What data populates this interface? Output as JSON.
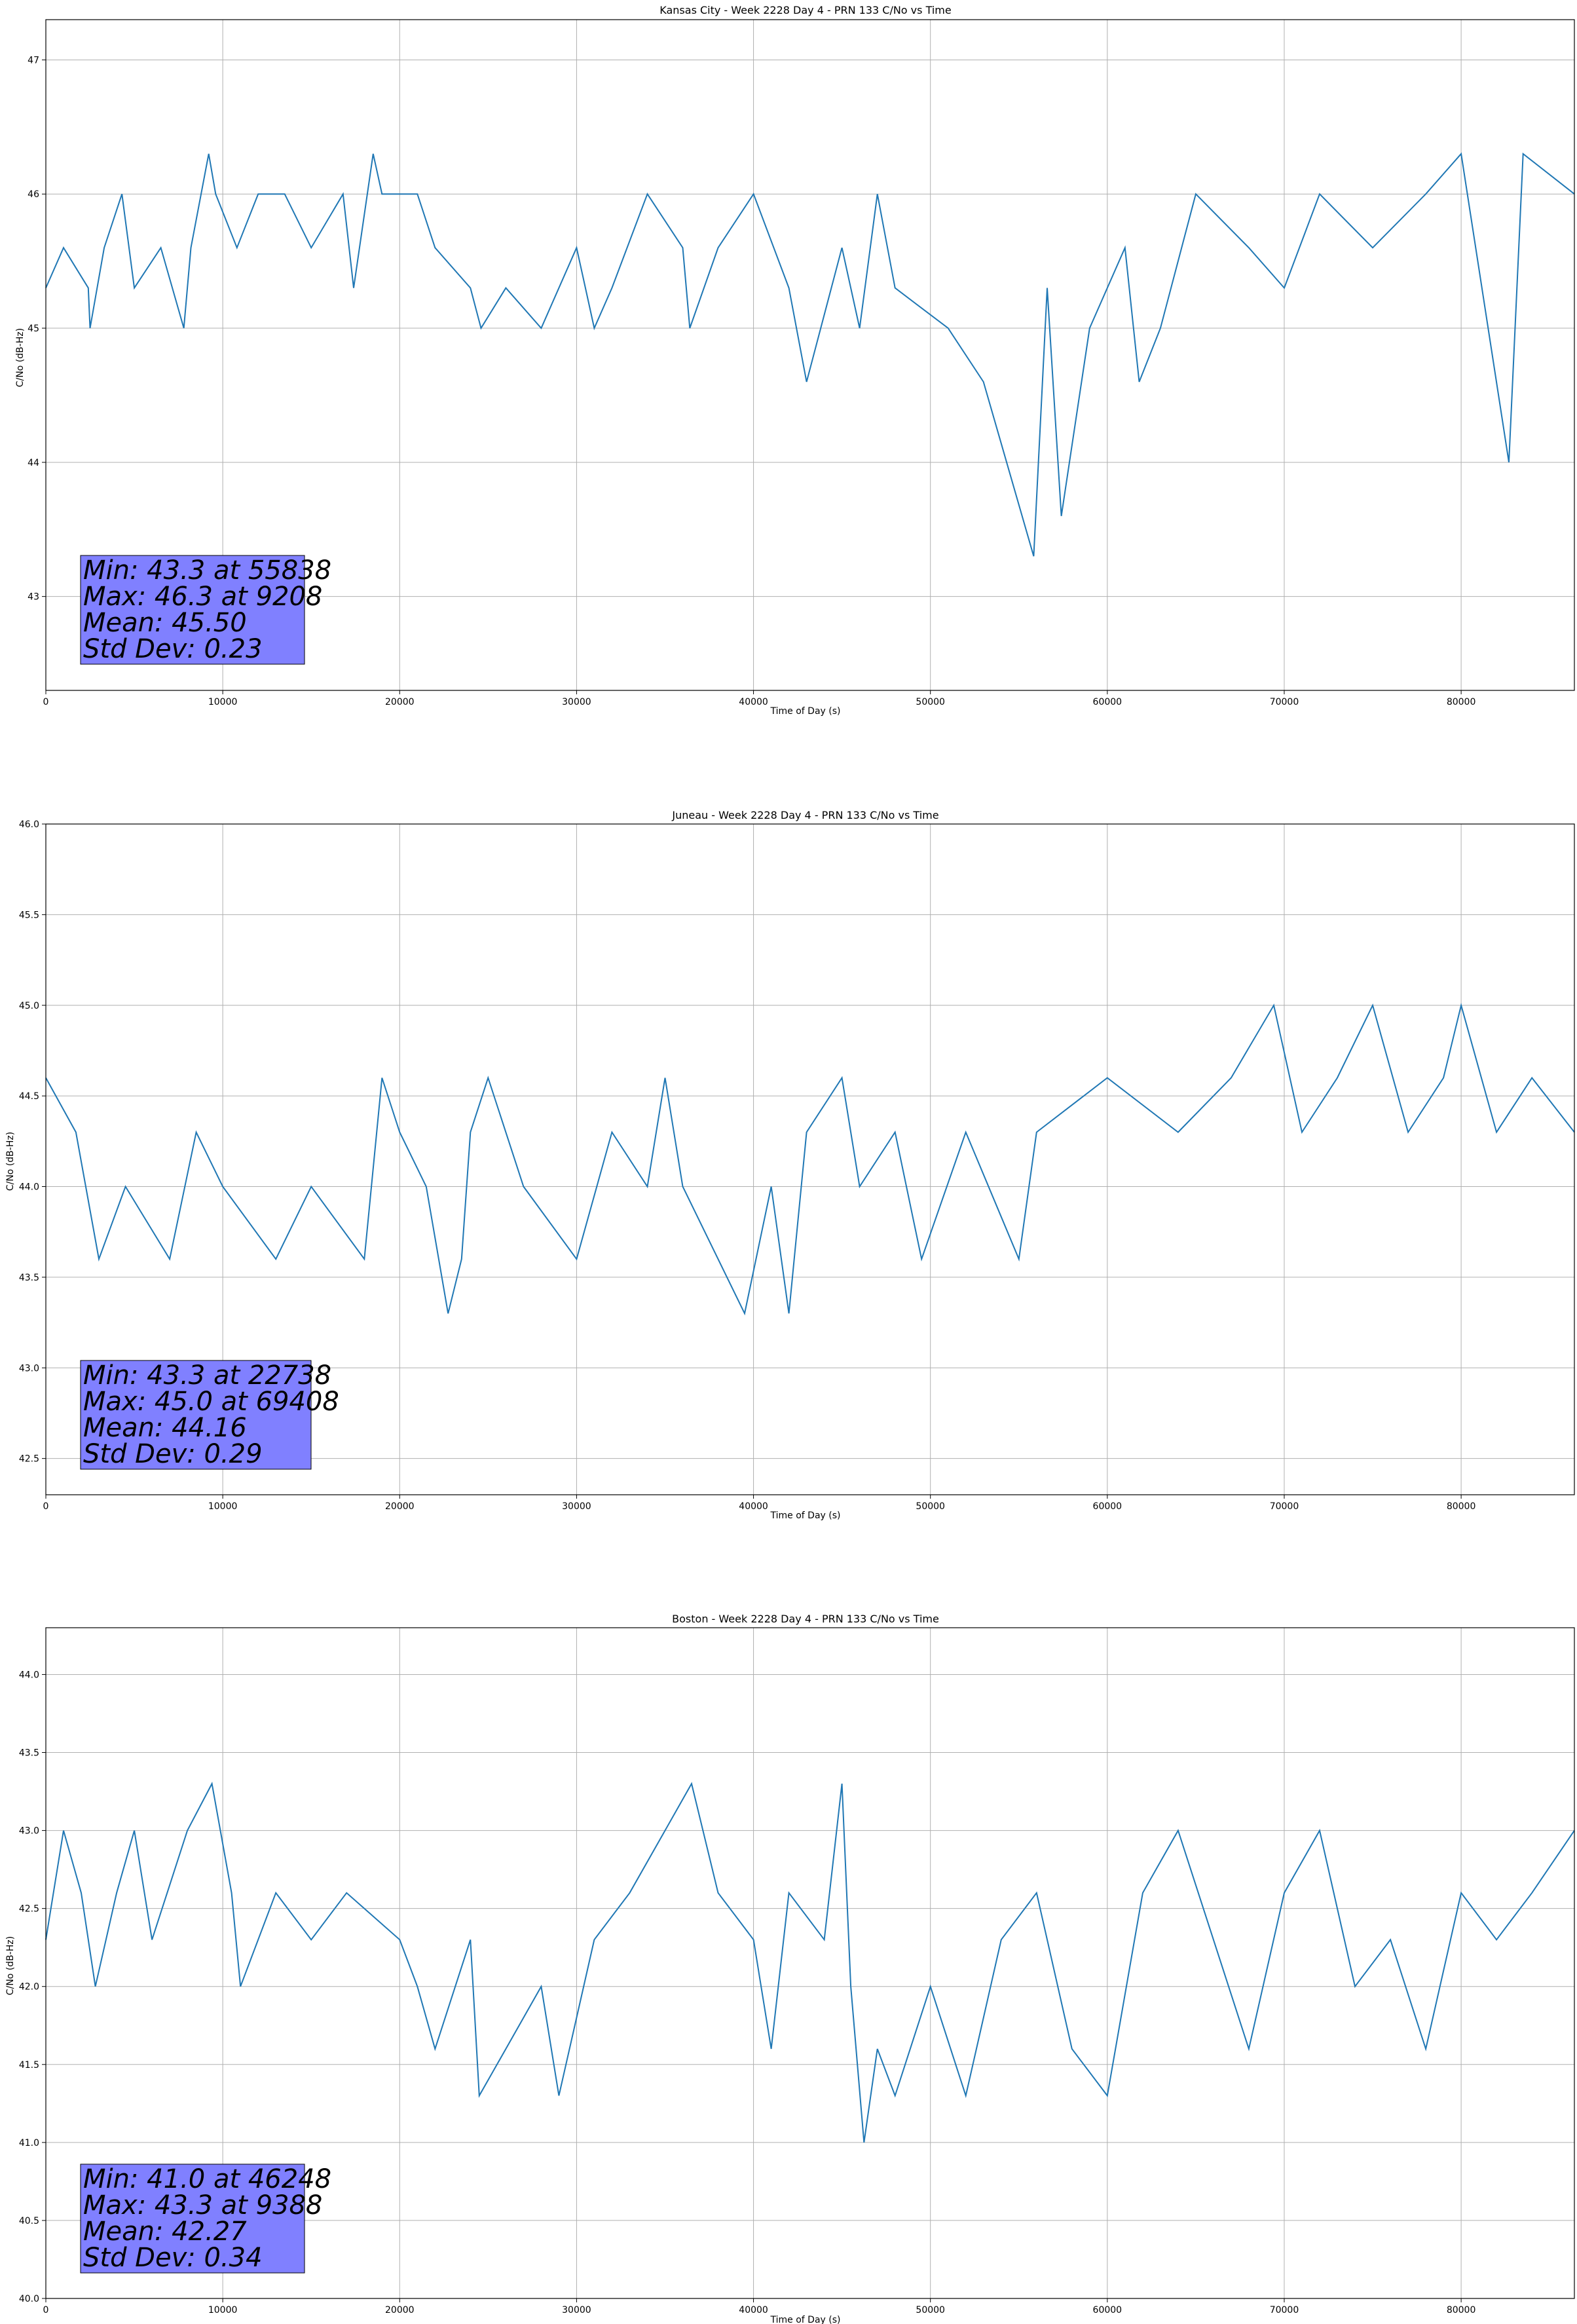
{
  "chart_data": [
    {
      "type": "line",
      "title": "Kansas City - Week 2228 Day 4 - PRN 133 C/No vs Time",
      "xlabel": "Time of Day (s)",
      "ylabel": "C/No (dB-Hz)",
      "xlim": [
        0,
        86400
      ],
      "ylim": [
        42.3,
        47.3
      ],
      "xticks": [
        0,
        10000,
        20000,
        30000,
        40000,
        50000,
        60000,
        70000,
        80000
      ],
      "yticks": [
        43,
        44,
        45,
        46,
        47
      ],
      "ytick_labels": [
        "43",
        "44",
        "45",
        "46",
        "47"
      ],
      "grid": true,
      "series_color": "#1f77b4",
      "stats_box_color": "#8080ff",
      "stats_lines": [
        "Min: 43.3 at 55838",
        "Max: 46.3 at 9208",
        "Mean: 45.50",
        "Std Dev: 0.23"
      ],
      "series": [
        {
          "points": [
            [
              0,
              45.3
            ],
            [
              1000,
              45.6
            ],
            [
              2400,
              45.3
            ],
            [
              2500,
              45.0
            ],
            [
              3300,
              45.6
            ],
            [
              4300,
              46.0
            ],
            [
              5000,
              45.3
            ],
            [
              6500,
              45.6
            ],
            [
              7800,
              45.0
            ],
            [
              8200,
              45.6
            ],
            [
              9208,
              46.3
            ],
            [
              9600,
              46.0
            ],
            [
              10800,
              45.6
            ],
            [
              12000,
              46.0
            ],
            [
              13500,
              46.0
            ],
            [
              15000,
              45.6
            ],
            [
              16800,
              46.0
            ],
            [
              17400,
              45.3
            ],
            [
              18500,
              46.3
            ],
            [
              19000,
              46.0
            ],
            [
              21000,
              46.0
            ],
            [
              22000,
              45.6
            ],
            [
              24000,
              45.3
            ],
            [
              24600,
              45.0
            ],
            [
              26000,
              45.3
            ],
            [
              28000,
              45.0
            ],
            [
              30000,
              45.6
            ],
            [
              31000,
              45.0
            ],
            [
              32000,
              45.3
            ],
            [
              34000,
              46.0
            ],
            [
              36000,
              45.6
            ],
            [
              36400,
              45.0
            ],
            [
              38000,
              45.6
            ],
            [
              40000,
              46.0
            ],
            [
              42000,
              45.3
            ],
            [
              43000,
              44.6
            ],
            [
              45000,
              45.6
            ],
            [
              46000,
              45.0
            ],
            [
              47000,
              46.0
            ],
            [
              48000,
              45.3
            ],
            [
              51000,
              45.0
            ],
            [
              53000,
              44.6
            ],
            [
              55838,
              43.3
            ],
            [
              56600,
              45.3
            ],
            [
              57400,
              43.6
            ],
            [
              59000,
              45.0
            ],
            [
              61000,
              45.6
            ],
            [
              61800,
              44.6
            ],
            [
              63000,
              45.0
            ],
            [
              65000,
              46.0
            ],
            [
              68000,
              45.6
            ],
            [
              70000,
              45.3
            ],
            [
              72000,
              46.0
            ],
            [
              75000,
              45.6
            ],
            [
              78000,
              46.0
            ],
            [
              80000,
              46.3
            ],
            [
              82700,
              44.0
            ],
            [
              83500,
              46.3
            ],
            [
              86400,
              46.0
            ]
          ]
        }
      ]
    },
    {
      "type": "line",
      "title": "Juneau - Week 2228 Day 4 - PRN 133 C/No vs Time",
      "xlabel": "Time of Day (s)",
      "ylabel": "C/No (dB-Hz)",
      "xlim": [
        0,
        86400
      ],
      "ylim": [
        42.3,
        46.0
      ],
      "xticks": [
        0,
        10000,
        20000,
        30000,
        40000,
        50000,
        60000,
        70000,
        80000
      ],
      "yticks": [
        42.5,
        43.0,
        43.5,
        44.0,
        44.5,
        45.0,
        45.5,
        46.0
      ],
      "ytick_labels": [
        "42.5",
        "43.0",
        "43.5",
        "44.0",
        "44.5",
        "45.0",
        "45.5",
        "46.0"
      ],
      "grid": true,
      "series_color": "#1f77b4",
      "stats_box_color": "#8080ff",
      "stats_lines": [
        "Min: 43.3 at 22738",
        "Max: 45.0 at 69408",
        "Mean: 44.16",
        "Std Dev: 0.29"
      ],
      "series": [
        {
          "points": [
            [
              0,
              44.6
            ],
            [
              1700,
              44.3
            ],
            [
              3000,
              43.6
            ],
            [
              4500,
              44.0
            ],
            [
              7000,
              43.6
            ],
            [
              8500,
              44.3
            ],
            [
              10000,
              44.0
            ],
            [
              13000,
              43.6
            ],
            [
              15000,
              44.0
            ],
            [
              18000,
              43.6
            ],
            [
              19000,
              44.6
            ],
            [
              20000,
              44.3
            ],
            [
              21500,
              44.0
            ],
            [
              22738,
              43.3
            ],
            [
              23500,
              43.6
            ],
            [
              24000,
              44.3
            ],
            [
              25000,
              44.6
            ],
            [
              27000,
              44.0
            ],
            [
              30000,
              43.6
            ],
            [
              32000,
              44.3
            ],
            [
              34000,
              44.0
            ],
            [
              35000,
              44.6
            ],
            [
              36000,
              44.0
            ],
            [
              38000,
              43.6
            ],
            [
              39500,
              43.3
            ],
            [
              41000,
              44.0
            ],
            [
              42000,
              43.3
            ],
            [
              43000,
              44.3
            ],
            [
              45000,
              44.6
            ],
            [
              46000,
              44.0
            ],
            [
              48000,
              44.3
            ],
            [
              49500,
              43.6
            ],
            [
              52000,
              44.3
            ],
            [
              55000,
              43.6
            ],
            [
              56000,
              44.3
            ],
            [
              60000,
              44.6
            ],
            [
              64000,
              44.3
            ],
            [
              67000,
              44.6
            ],
            [
              69408,
              45.0
            ],
            [
              71000,
              44.3
            ],
            [
              73000,
              44.6
            ],
            [
              75000,
              45.0
            ],
            [
              77000,
              44.3
            ],
            [
              79000,
              44.6
            ],
            [
              80000,
              45.0
            ],
            [
              82000,
              44.3
            ],
            [
              84000,
              44.6
            ],
            [
              86400,
              44.3
            ]
          ]
        }
      ]
    },
    {
      "type": "line",
      "title": "Boston - Week 2228 Day 4 - PRN 133 C/No vs Time",
      "xlabel": "Time of Day (s)",
      "ylabel": "C/No (dB-Hz)",
      "xlim": [
        0,
        86400
      ],
      "ylim": [
        40.0,
        44.3
      ],
      "xticks": [
        0,
        10000,
        20000,
        30000,
        40000,
        50000,
        60000,
        70000,
        80000
      ],
      "yticks": [
        40.0,
        40.5,
        41.0,
        41.5,
        42.0,
        42.5,
        43.0,
        43.5,
        44.0
      ],
      "ytick_labels": [
        "40.0",
        "40.5",
        "41.0",
        "41.5",
        "42.0",
        "42.5",
        "43.0",
        "43.5",
        "44.0"
      ],
      "grid": true,
      "series_color": "#1f77b4",
      "stats_box_color": "#8080ff",
      "stats_lines": [
        "Min: 41.0 at 46248",
        "Max: 43.3 at 9388",
        "Mean: 42.27",
        "Std Dev: 0.34"
      ],
      "series": [
        {
          "points": [
            [
              0,
              42.3
            ],
            [
              1000,
              43.0
            ],
            [
              2000,
              42.6
            ],
            [
              2800,
              42.0
            ],
            [
              4000,
              42.6
            ],
            [
              5000,
              43.0
            ],
            [
              6000,
              42.3
            ],
            [
              8000,
              43.0
            ],
            [
              9388,
              43.3
            ],
            [
              10500,
              42.6
            ],
            [
              11000,
              42.0
            ],
            [
              13000,
              42.6
            ],
            [
              15000,
              42.3
            ],
            [
              17000,
              42.6
            ],
            [
              20000,
              42.3
            ],
            [
              21000,
              42.0
            ],
            [
              22000,
              41.6
            ],
            [
              24000,
              42.3
            ],
            [
              24500,
              41.3
            ],
            [
              26000,
              41.6
            ],
            [
              28000,
              42.0
            ],
            [
              29000,
              41.3
            ],
            [
              31000,
              42.3
            ],
            [
              33000,
              42.6
            ],
            [
              35000,
              43.0
            ],
            [
              36500,
              43.3
            ],
            [
              38000,
              42.6
            ],
            [
              40000,
              42.3
            ],
            [
              41000,
              41.6
            ],
            [
              42000,
              42.6
            ],
            [
              44000,
              42.3
            ],
            [
              45000,
              43.3
            ],
            [
              45500,
              42.0
            ],
            [
              46248,
              41.0
            ],
            [
              47000,
              41.6
            ],
            [
              48000,
              41.3
            ],
            [
              50000,
              42.0
            ],
            [
              52000,
              41.3
            ],
            [
              54000,
              42.3
            ],
            [
              56000,
              42.6
            ],
            [
              58000,
              41.6
            ],
            [
              60000,
              41.3
            ],
            [
              62000,
              42.6
            ],
            [
              64000,
              43.0
            ],
            [
              66000,
              42.3
            ],
            [
              68000,
              41.6
            ],
            [
              70000,
              42.6
            ],
            [
              72000,
              43.0
            ],
            [
              74000,
              42.0
            ],
            [
              76000,
              42.3
            ],
            [
              78000,
              41.6
            ],
            [
              80000,
              42.6
            ],
            [
              82000,
              42.3
            ],
            [
              84000,
              42.6
            ],
            [
              86400,
              43.0
            ]
          ]
        }
      ]
    }
  ]
}
